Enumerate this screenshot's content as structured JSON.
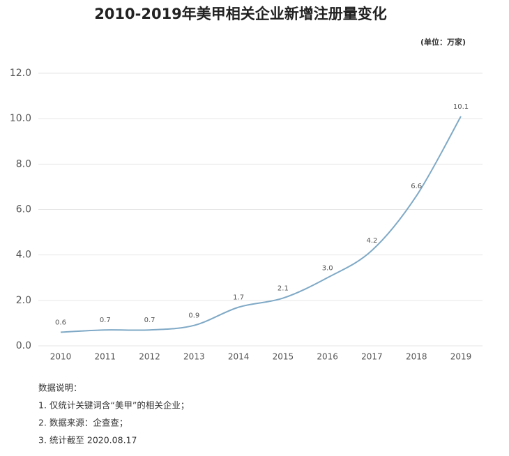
{
  "chart_data": {
    "type": "line",
    "title": "2010-2019年美甲相关企业新增注册量变化",
    "unit": "(单位：万家)",
    "categories": [
      "2010",
      "2011",
      "2012",
      "2013",
      "2014",
      "2015",
      "2016",
      "2017",
      "2018",
      "2019"
    ],
    "series": [
      {
        "name": "新增注册量",
        "color": "#7fa9c6",
        "values": [
          0.6,
          0.7,
          0.7,
          0.9,
          1.7,
          2.1,
          3.0,
          4.2,
          6.6,
          10.1
        ],
        "value_labels": [
          "0.6",
          "0.7",
          "0.7",
          "0.9",
          "1.7",
          "2.1",
          "3.0",
          "4.2",
          "6.6",
          "10.1"
        ]
      }
    ],
    "ylim": [
      0,
      12
    ],
    "yticks": [
      {
        "value": 0,
        "label": "0.0"
      },
      {
        "value": 2,
        "label": "2.0"
      },
      {
        "value": 4,
        "label": "4.0"
      },
      {
        "value": 6,
        "label": "6.0"
      },
      {
        "value": 8,
        "label": "8.0"
      },
      {
        "value": 10,
        "label": "10.0"
      },
      {
        "value": 12,
        "label": "12.0"
      }
    ],
    "grid": true,
    "notes": [
      "数据说明：",
      "1. 仅统计关键词含“美甲”的相关企业；",
      "2. 数据来源：企查查；",
      "3. 统计截至 2020.08.17"
    ]
  }
}
